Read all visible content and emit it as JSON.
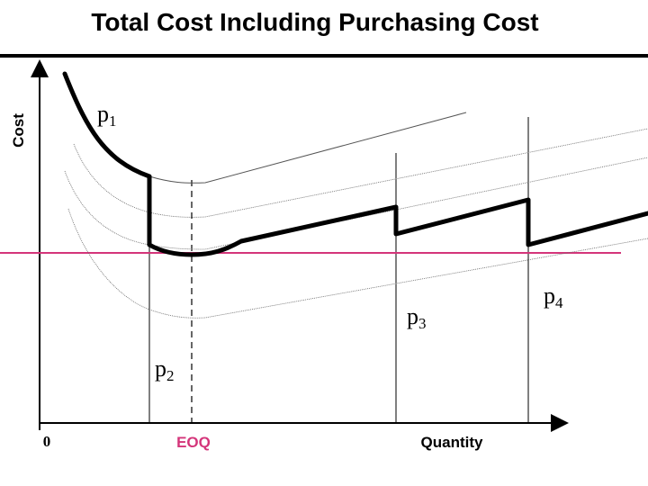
{
  "title": "Total Cost Including Purchasing Cost",
  "labels": {
    "y_axis": "Cost",
    "x_axis": "Quantity",
    "origin": "0",
    "eoq": "EOQ"
  },
  "price_levels": [
    {
      "letter": "p",
      "sub": "1"
    },
    {
      "letter": "p",
      "sub": "2"
    },
    {
      "letter": "p",
      "sub": "3"
    },
    {
      "letter": "p",
      "sub": "4"
    }
  ],
  "colors": {
    "axis": "#000000",
    "min_cost_line": "#d4357a",
    "eoq_label": "#d4357a",
    "total_cost_curve": "#000000"
  }
}
